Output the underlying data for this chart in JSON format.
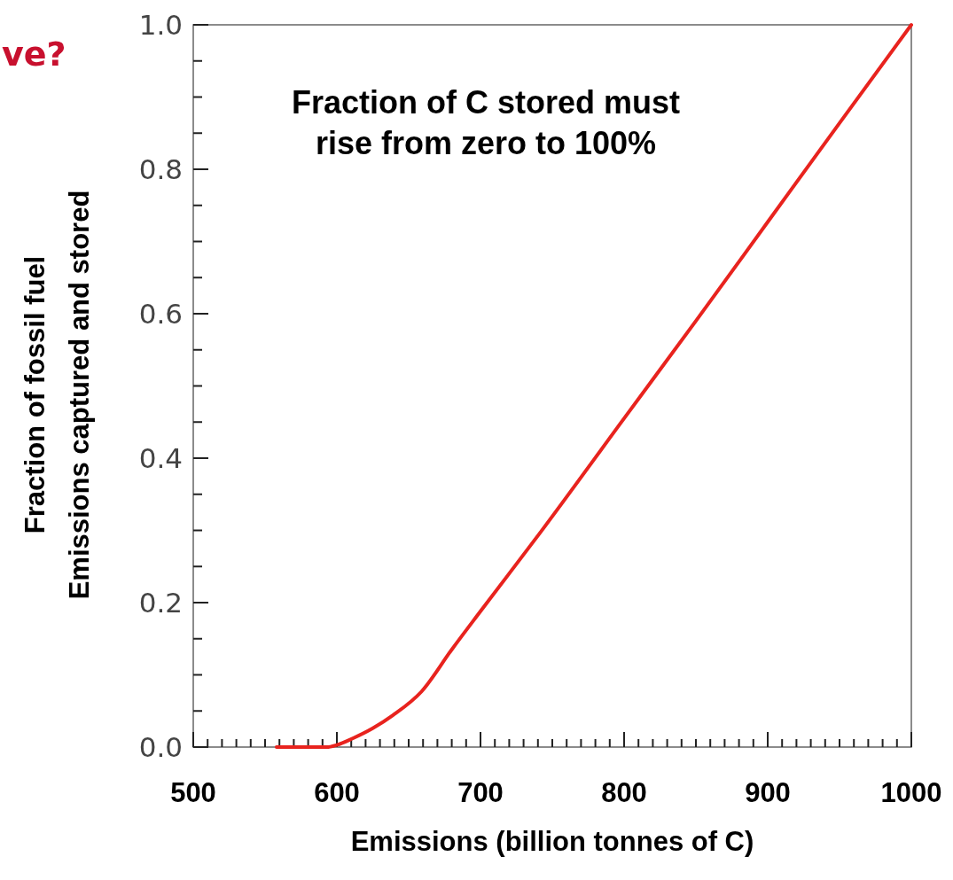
{
  "chart_data": {
    "type": "line",
    "title": "ve?",
    "xlabel": "Emissions (billion tonnes of C)",
    "ylabel": "Fraction of fossil fuel\nEmissions  captured and stored",
    "annotations": [
      "Fraction of C stored must\nrise from zero to 100%"
    ],
    "xlim": [
      500,
      1000
    ],
    "ylim": [
      0,
      1
    ],
    "xticks": [
      500,
      {
        "value": 510,
        "label": null
      },
      {
        "value": 520,
        "label": null
      },
      {
        "value": 530,
        "label": null
      },
      {
        "value": 540,
        "label": null
      },
      {
        "value": 550,
        "label": null
      },
      {
        "value": 560,
        "label": null
      },
      {
        "value": 570,
        "label": null
      },
      {
        "value": 580,
        "label": null
      },
      {
        "value": 590,
        "label": null
      },
      600,
      {
        "value": 610,
        "label": null
      },
      {
        "value": 620,
        "label": null
      },
      {
        "value": 630,
        "label": null
      },
      {
        "value": 640,
        "label": null
      },
      {
        "value": 650,
        "label": null
      },
      {
        "value": 660,
        "label": null
      },
      {
        "value": 670,
        "label": null
      },
      {
        "value": 680,
        "label": null
      },
      {
        "value": 690,
        "label": null
      },
      700,
      {
        "value": 710,
        "label": null
      },
      {
        "value": 720,
        "label": null
      },
      {
        "value": 730,
        "label": null
      },
      {
        "value": 740,
        "label": null
      },
      {
        "value": 750,
        "label": null
      },
      {
        "value": 760,
        "label": null
      },
      {
        "value": 770,
        "label": null
      },
      {
        "value": 780,
        "label": null
      },
      {
        "value": 790,
        "label": null
      },
      800,
      {
        "value": 810,
        "label": null
      },
      {
        "value": 820,
        "label": null
      },
      {
        "value": 830,
        "label": null
      },
      {
        "value": 840,
        "label": null
      },
      {
        "value": 850,
        "label": null
      },
      {
        "value": 860,
        "label": null
      },
      {
        "value": 870,
        "label": null
      },
      {
        "value": 880,
        "label": null
      },
      {
        "value": 890,
        "label": null
      },
      900,
      {
        "value": 910,
        "label": null
      },
      {
        "value": 920,
        "label": null
      },
      {
        "value": 930,
        "label": null
      },
      {
        "value": 940,
        "label": null
      },
      {
        "value": 950,
        "label": null
      },
      {
        "value": 960,
        "label": null
      },
      {
        "value": 970,
        "label": null
      },
      {
        "value": 980,
        "label": null
      },
      {
        "value": 990,
        "label": null
      },
      1000
    ],
    "yticks": [
      {
        "value": 0,
        "label": "0.0"
      },
      {
        "value": 0.05,
        "label": null
      },
      {
        "value": 0.1,
        "label": null
      },
      {
        "value": 0.15,
        "label": null
      },
      0.2,
      {
        "value": 0.25,
        "label": null
      },
      {
        "value": 0.3,
        "label": null
      },
      {
        "value": 0.35,
        "label": null
      },
      0.4,
      {
        "value": 0.45,
        "label": null
      },
      {
        "value": 0.5,
        "label": null
      },
      {
        "value": 0.55,
        "label": null
      },
      0.6,
      {
        "value": 0.65,
        "label": null
      },
      {
        "value": 0.7,
        "label": null
      },
      {
        "value": 0.75,
        "label": null
      },
      0.8,
      {
        "value": 0.85,
        "label": null
      },
      {
        "value": 0.9,
        "label": null
      },
      {
        "value": 0.95,
        "label": null
      },
      {
        "value": 1,
        "label": "1.0"
      }
    ],
    "grid": false,
    "marker": "none",
    "line_style": "solid",
    "x": [
      558,
      575,
      593,
      600,
      611,
      625,
      639,
      659,
      680,
      700,
      742,
      800,
      850,
      900,
      950,
      1000
    ],
    "series": [
      {
        "color": "#e8231e",
        "values": [
          0,
          0,
          0,
          0.003,
          0.012,
          0.026,
          0.044,
          0.077,
          0.135,
          0.188,
          0.298,
          0.455,
          0.59,
          0.727,
          0.864,
          1.0
        ]
      }
    ]
  }
}
